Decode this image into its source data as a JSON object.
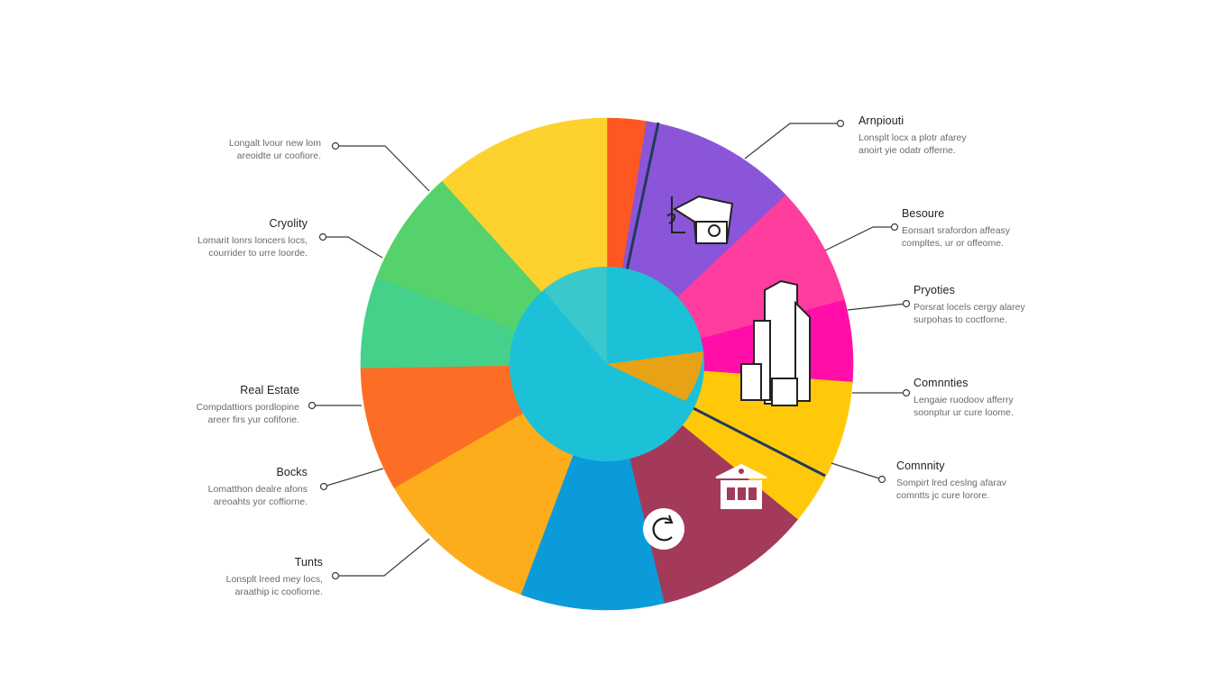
{
  "chart_data": {
    "type": "pie",
    "slices": [
      {
        "label": "",
        "value": 2.8,
        "color": "#ff5722"
      },
      {
        "label": "Arnpiouti",
        "value": 11.2,
        "color": "#8a55d8"
      },
      {
        "label": "Besoure",
        "value": 8.5,
        "color": "#ff3d9e"
      },
      {
        "label": "Pryoties",
        "value": 5.8,
        "color": "#ff0fa8"
      },
      {
        "label": "Comnnties",
        "value": 10.5,
        "color": "#ffc90a"
      },
      {
        "label": "Comnnity",
        "value": 11.2,
        "color": "#a43a5a"
      },
      {
        "label": "",
        "value": 10.2,
        "color": "#0b9bd8"
      },
      {
        "label": "Tunts",
        "value": 11.8,
        "color": "#fdad1c"
      },
      {
        "label": "Bocks",
        "value": 8.8,
        "color": "#fc6e25"
      },
      {
        "label": "Real Estate",
        "value": 6.5,
        "color": "#45d18a"
      },
      {
        "label": "Cryolity",
        "value": 8.2,
        "color": "#56d26c"
      },
      {
        "label": "",
        "value": 12.6,
        "color": "#fdd22e"
      }
    ],
    "legend": "callouts"
  },
  "labels": [
    {
      "title": "Arnpiouti",
      "desc": [
        "Lonsplt locx a plotr afarey",
        "anoirt yie odatr offerne."
      ]
    },
    {
      "title": "Besoure",
      "desc": [
        "Eonsart srafordon affeasy",
        "compltes, ur or offeome."
      ]
    },
    {
      "title": "Pryoties",
      "desc": [
        "Porsrat locels cergy alarey",
        "surpohas to coctforne."
      ]
    },
    {
      "title": "Comnnties",
      "desc": [
        "Lengaie ruodoov afferry",
        "soonptur ur cure loome."
      ]
    },
    {
      "title": "Comnnity",
      "desc": [
        "Sompirt lred ceslng afarav",
        "comntts jc cure lorore."
      ]
    },
    {
      "title": "",
      "desc": [
        "Longalt lvour new lom",
        "areoidte ur coofiore."
      ]
    },
    {
      "title": "Cryolity",
      "desc": [
        "Lomarit lonrs loncers locs,",
        "courrider to urre loorde."
      ]
    },
    {
      "title": "Real Estate",
      "desc": [
        "Compdattiors pordlopine",
        "areer firs yur cofiforie."
      ]
    },
    {
      "title": "Bocks",
      "desc": [
        "Lomatthon dealre afons",
        "areoahts yor coffiorne."
      ]
    },
    {
      "title": "Tunts",
      "desc": [
        "Lonsplt lreed mey locs,",
        "araathip ic coofiorne."
      ]
    }
  ],
  "colors": {
    "inner_circle": "#1cc1d8",
    "inner_wedge": "#3ec9c9",
    "connector": "#3a3a3a"
  },
  "icons": [
    "graduation-cap-icon",
    "buildings-icon",
    "bank-icon",
    "refresh-icon"
  ]
}
